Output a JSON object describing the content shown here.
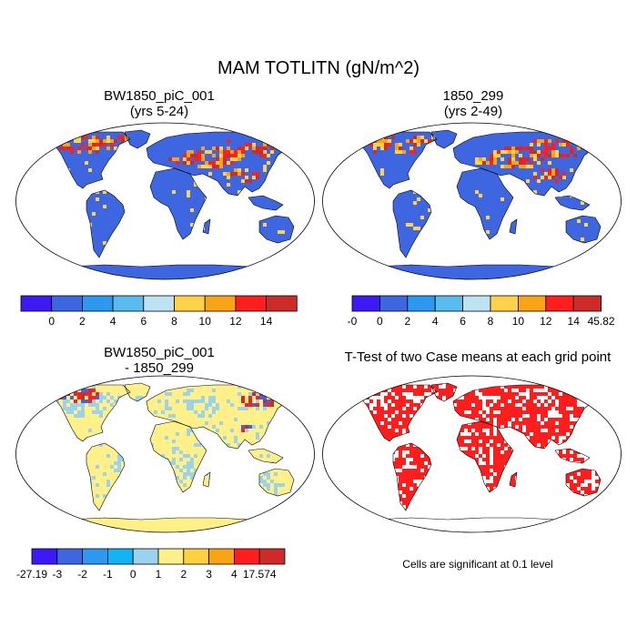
{
  "title": "MAM TOTLITN (gN/m^2)",
  "panels": [
    {
      "title_line1": "BW1850_piC_001",
      "title_line2": "(yrs 5-24)"
    },
    {
      "title_line1": "1850_299",
      "title_line2": "(yrs 2-49)"
    },
    {
      "title_line1": "BW1850_piC_001",
      "title_line2": "- 1850_299"
    },
    {
      "title_line1": "T-Test of two Case means at each grid point",
      "title_line2": ""
    }
  ],
  "colorbars": {
    "case1": {
      "colors": [
        "#3d1af5",
        "#3e66e0",
        "#2c98ef",
        "#59bbee",
        "#bde3f2",
        "#ffd24a",
        "#f9a317",
        "#ff1e1e",
        "#cd2a2a"
      ],
      "labels": [
        "0",
        "2",
        "4",
        "6",
        "8",
        "10",
        "12",
        "14"
      ]
    },
    "case2": {
      "colors": [
        "#3d1af5",
        "#3e66e0",
        "#2c98ef",
        "#59bbee",
        "#bde3f2",
        "#ffd24a",
        "#f9a317",
        "#ff1e1e",
        "#cd2a2a"
      ],
      "labels": [
        "-0",
        "0",
        "2",
        "4",
        "6",
        "8",
        "10",
        "12",
        "14",
        "45.82"
      ]
    },
    "diff": {
      "colors": [
        "#3d1af5",
        "#3e66e0",
        "#2c98ef",
        "#13b4f5",
        "#9bd3ef",
        "#fff08a",
        "#ffd040",
        "#f9a317",
        "#ff1e1e",
        "#cd2a2a"
      ],
      "labels": [
        "-27.19",
        "-3",
        "-2",
        "-1",
        "0",
        "1",
        "2",
        "3",
        "4",
        "17.574"
      ]
    }
  },
  "map_colors": {
    "ocean": "#ffffff",
    "case_land": "#3e66e0",
    "case_high": [
      "#ff1e1e",
      "#cd2a2a",
      "#f9a317",
      "#ffd24a"
    ],
    "diff_land": "#fff08a",
    "diff_light": "#9bd3ef",
    "diff_high": [
      "#ff1e1e",
      "#cd2a2a",
      "#3e66e0"
    ],
    "ttest_sig": "#ff1e1e"
  },
  "note": "Cells are significant at 0.1 level"
}
